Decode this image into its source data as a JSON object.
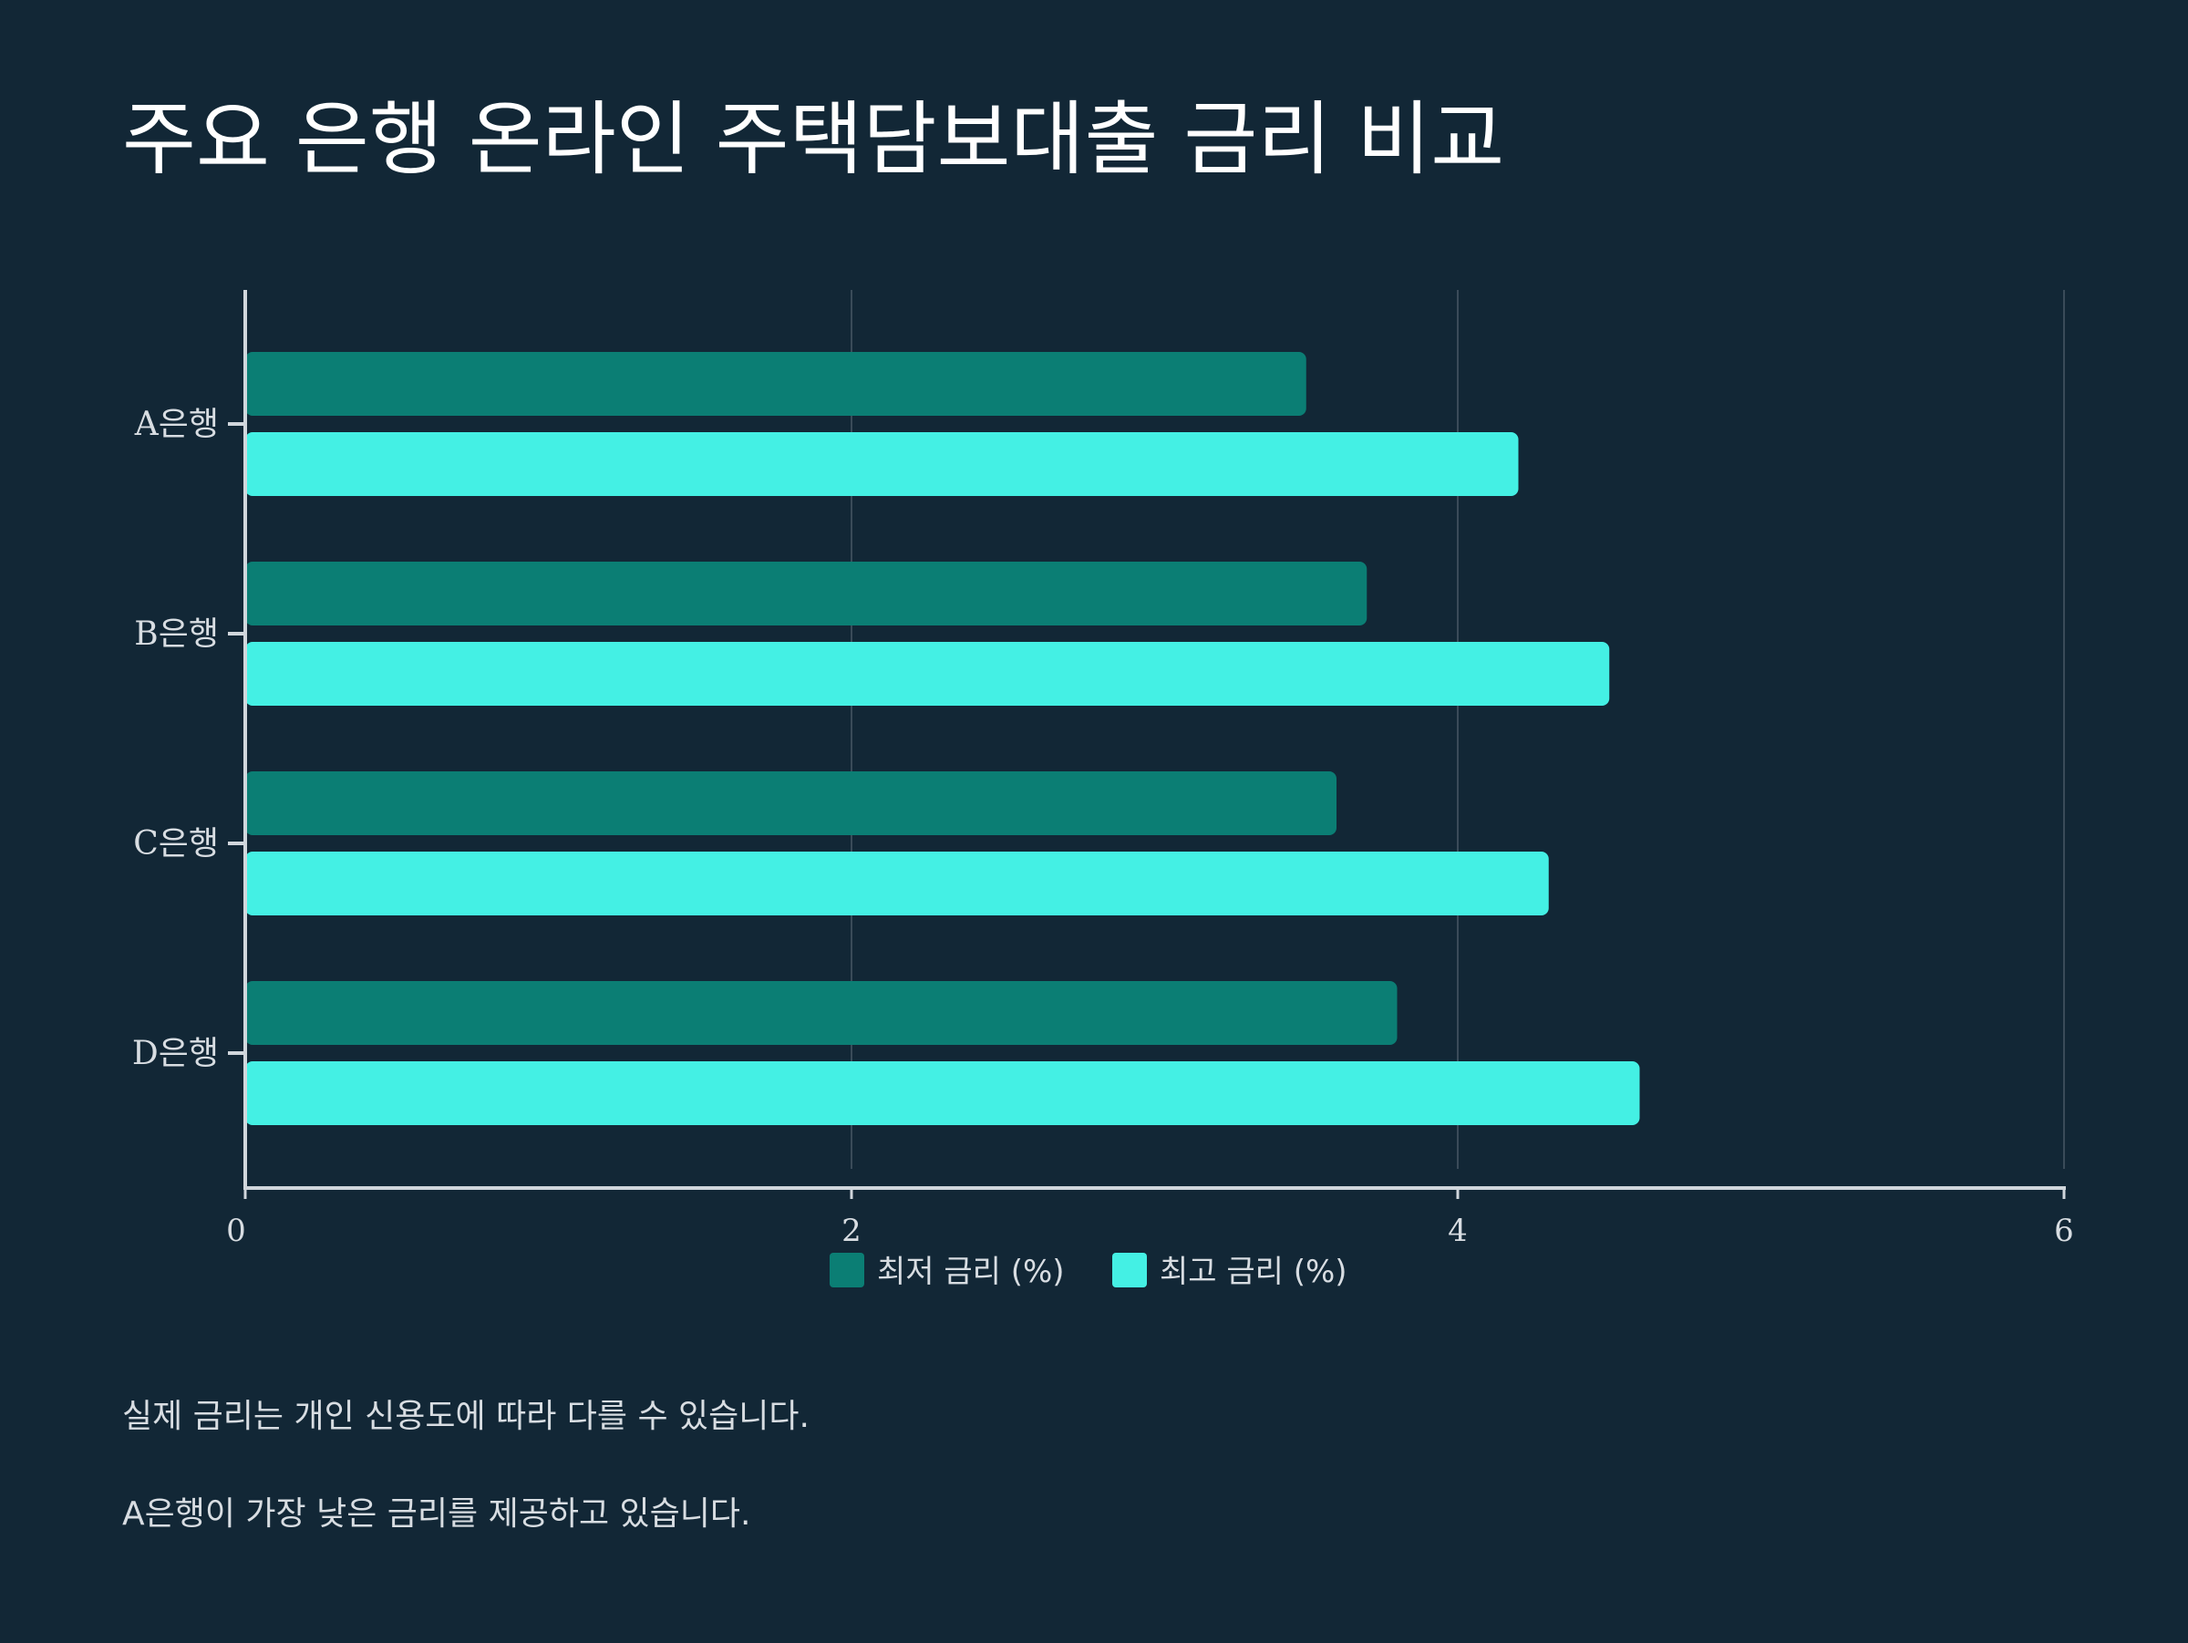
{
  "title": "주요 은행 온라인 주택담보대출 금리 비교",
  "chart_data": {
    "type": "bar",
    "orientation": "horizontal",
    "title": "주요 은행 온라인 주택담보대출 금리 비교",
    "categories": [
      "A은행",
      "B은행",
      "C은행",
      "D은행"
    ],
    "series": [
      {
        "name": "최저 금리 (%)",
        "values": [
          3.5,
          3.7,
          3.6,
          3.8
        ],
        "color": "#0b7e74"
      },
      {
        "name": "최고 금리 (%)",
        "values": [
          4.2,
          4.5,
          4.3,
          4.6
        ],
        "color": "#44f0e4"
      }
    ],
    "xlim": [
      0,
      6
    ],
    "x_ticks": [
      "0",
      "2",
      "4",
      "6"
    ],
    "xlabel": "",
    "ylabel": "",
    "grid": "vertical",
    "legend": "bottom-center"
  },
  "notes": [
    "실제 금리는 개인 신용도에 따라 다를 수 있습니다.",
    "A은행이 가장 낮은 금리를 제공하고 있습니다."
  ],
  "colors": {
    "background": "#122736",
    "grid": "#3a4b59",
    "axis": "#d0d6dc",
    "text": "#d8dde2"
  }
}
